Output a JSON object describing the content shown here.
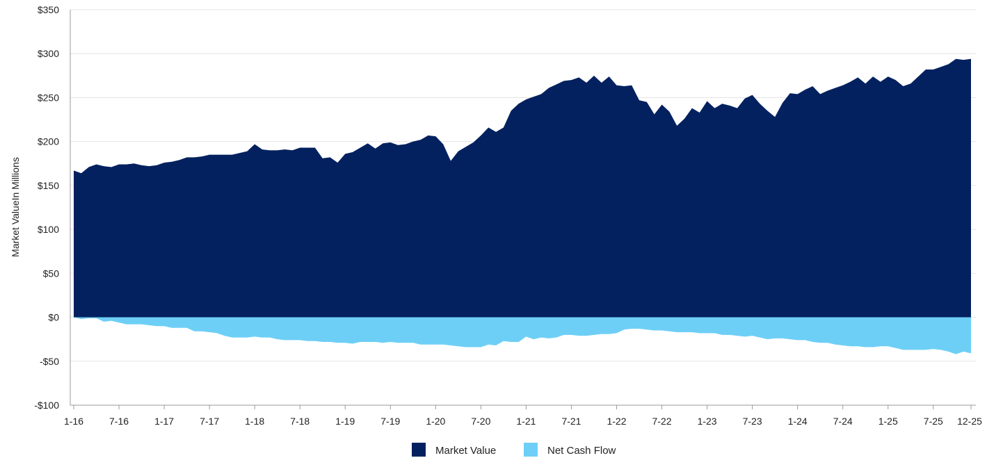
{
  "chart_data": {
    "type": "area",
    "ylabel": "Market ValueIn Millions",
    "ylim": [
      -100,
      350
    ],
    "yticks": [
      350,
      300,
      250,
      200,
      150,
      100,
      50,
      0,
      -50,
      -100
    ],
    "ytick_labels": [
      "$350",
      "$300",
      "$250",
      "$200",
      "$150",
      "$100",
      "$50",
      "$0",
      "-$50",
      "-$100"
    ],
    "xtick_labels": [
      "1-16",
      "7-16",
      "1-17",
      "7-17",
      "1-18",
      "7-18",
      "1-19",
      "7-19",
      "1-20",
      "7-20",
      "1-21",
      "7-21",
      "1-22",
      "7-22",
      "1-23",
      "7-23",
      "1-24",
      "7-24",
      "1-25",
      "7-25",
      "12-25"
    ],
    "xtick_month_index": [
      0,
      6,
      12,
      18,
      24,
      30,
      36,
      42,
      48,
      54,
      60,
      66,
      72,
      78,
      84,
      90,
      96,
      102,
      108,
      114,
      119
    ],
    "x_start": "2016-01",
    "x_end": "2025-12",
    "grid": true,
    "legend_position": "bottom-center",
    "colors": {
      "market_value": "#03215f",
      "net_cash_flow": "#6ecff6",
      "grid": "#e4e4e4",
      "axis": "#9a9a9a"
    },
    "series": [
      {
        "name": "Market Value",
        "values": [
          167,
          164,
          171,
          174,
          172,
          171,
          174,
          174,
          175,
          173,
          172,
          173,
          176,
          177,
          179,
          182,
          182,
          183,
          185,
          185,
          185,
          185,
          187,
          189,
          197,
          191,
          190,
          190,
          191,
          190,
          193,
          193,
          193,
          181,
          182,
          176,
          186,
          188,
          193,
          198,
          192,
          198,
          199,
          196,
          197,
          200,
          202,
          207,
          206,
          197,
          178,
          189,
          194,
          199,
          207,
          216,
          211,
          216,
          235,
          243,
          248,
          251,
          254,
          261,
          265,
          269,
          270,
          273,
          267,
          275,
          267,
          274,
          264,
          263,
          264,
          247,
          245,
          231,
          242,
          234,
          218,
          226,
          238,
          233,
          246,
          238,
          243,
          241,
          238,
          249,
          253,
          243,
          235,
          228,
          244,
          255,
          254,
          259,
          263,
          254,
          258,
          261,
          264,
          268,
          273,
          266,
          274,
          268,
          274,
          270,
          263,
          266,
          274,
          282,
          282,
          285,
          288,
          294,
          293,
          294
        ]
      },
      {
        "name": "Net Cash Flow",
        "values": [
          0,
          -2,
          -1,
          -1,
          -5,
          -4,
          -6,
          -8,
          -8,
          -8,
          -9,
          -10,
          -10,
          -12,
          -12,
          -12,
          -16,
          -16,
          -17,
          -18,
          -21,
          -23,
          -23,
          -23,
          -22,
          -23,
          -23,
          -25,
          -26,
          -26,
          -26,
          -27,
          -27,
          -28,
          -28,
          -29,
          -29,
          -30,
          -28,
          -28,
          -28,
          -29,
          -28,
          -29,
          -29,
          -29,
          -31,
          -31,
          -31,
          -31,
          -32,
          -33,
          -34,
          -34,
          -34,
          -31,
          -32,
          -27,
          -28,
          -28,
          -22,
          -25,
          -23,
          -24,
          -23,
          -20,
          -20,
          -21,
          -21,
          -20,
          -19,
          -19,
          -18,
          -14,
          -13,
          -13,
          -14,
          -15,
          -15,
          -16,
          -17,
          -17,
          -17,
          -18,
          -18,
          -18,
          -20,
          -20,
          -21,
          -22,
          -21,
          -23,
          -25,
          -24,
          -24,
          -25,
          -26,
          -26,
          -28,
          -29,
          -29,
          -31,
          -32,
          -33,
          -33,
          -34,
          -34,
          -33,
          -33,
          -35,
          -37,
          -37,
          -37,
          -37,
          -36,
          -37,
          -39,
          -42,
          -39,
          -41
        ]
      }
    ]
  }
}
